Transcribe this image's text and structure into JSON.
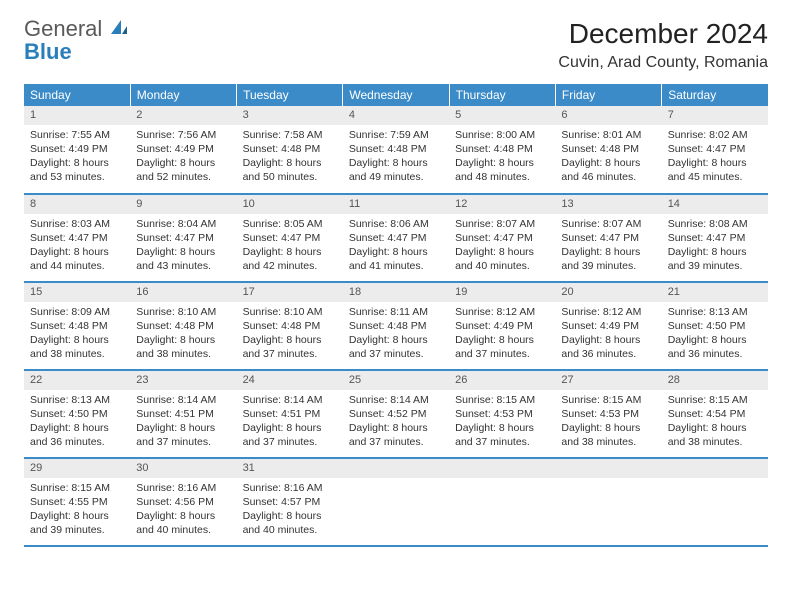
{
  "logo": {
    "general": "General",
    "blue": "Blue"
  },
  "title": "December 2024",
  "location": "Cuvin, Arad County, Romania",
  "header_bg": "#3b8bc9",
  "days": [
    "Sunday",
    "Monday",
    "Tuesday",
    "Wednesday",
    "Thursday",
    "Friday",
    "Saturday"
  ],
  "weeks": [
    [
      {
        "n": "1",
        "sr": "7:55 AM",
        "ss": "4:49 PM",
        "dl": "8 hours and 53 minutes."
      },
      {
        "n": "2",
        "sr": "7:56 AM",
        "ss": "4:49 PM",
        "dl": "8 hours and 52 minutes."
      },
      {
        "n": "3",
        "sr": "7:58 AM",
        "ss": "4:48 PM",
        "dl": "8 hours and 50 minutes."
      },
      {
        "n": "4",
        "sr": "7:59 AM",
        "ss": "4:48 PM",
        "dl": "8 hours and 49 minutes."
      },
      {
        "n": "5",
        "sr": "8:00 AM",
        "ss": "4:48 PM",
        "dl": "8 hours and 48 minutes."
      },
      {
        "n": "6",
        "sr": "8:01 AM",
        "ss": "4:48 PM",
        "dl": "8 hours and 46 minutes."
      },
      {
        "n": "7",
        "sr": "8:02 AM",
        "ss": "4:47 PM",
        "dl": "8 hours and 45 minutes."
      }
    ],
    [
      {
        "n": "8",
        "sr": "8:03 AM",
        "ss": "4:47 PM",
        "dl": "8 hours and 44 minutes."
      },
      {
        "n": "9",
        "sr": "8:04 AM",
        "ss": "4:47 PM",
        "dl": "8 hours and 43 minutes."
      },
      {
        "n": "10",
        "sr": "8:05 AM",
        "ss": "4:47 PM",
        "dl": "8 hours and 42 minutes."
      },
      {
        "n": "11",
        "sr": "8:06 AM",
        "ss": "4:47 PM",
        "dl": "8 hours and 41 minutes."
      },
      {
        "n": "12",
        "sr": "8:07 AM",
        "ss": "4:47 PM",
        "dl": "8 hours and 40 minutes."
      },
      {
        "n": "13",
        "sr": "8:07 AM",
        "ss": "4:47 PM",
        "dl": "8 hours and 39 minutes."
      },
      {
        "n": "14",
        "sr": "8:08 AM",
        "ss": "4:47 PM",
        "dl": "8 hours and 39 minutes."
      }
    ],
    [
      {
        "n": "15",
        "sr": "8:09 AM",
        "ss": "4:48 PM",
        "dl": "8 hours and 38 minutes."
      },
      {
        "n": "16",
        "sr": "8:10 AM",
        "ss": "4:48 PM",
        "dl": "8 hours and 38 minutes."
      },
      {
        "n": "17",
        "sr": "8:10 AM",
        "ss": "4:48 PM",
        "dl": "8 hours and 37 minutes."
      },
      {
        "n": "18",
        "sr": "8:11 AM",
        "ss": "4:48 PM",
        "dl": "8 hours and 37 minutes."
      },
      {
        "n": "19",
        "sr": "8:12 AM",
        "ss": "4:49 PM",
        "dl": "8 hours and 37 minutes."
      },
      {
        "n": "20",
        "sr": "8:12 AM",
        "ss": "4:49 PM",
        "dl": "8 hours and 36 minutes."
      },
      {
        "n": "21",
        "sr": "8:13 AM",
        "ss": "4:50 PM",
        "dl": "8 hours and 36 minutes."
      }
    ],
    [
      {
        "n": "22",
        "sr": "8:13 AM",
        "ss": "4:50 PM",
        "dl": "8 hours and 36 minutes."
      },
      {
        "n": "23",
        "sr": "8:14 AM",
        "ss": "4:51 PM",
        "dl": "8 hours and 37 minutes."
      },
      {
        "n": "24",
        "sr": "8:14 AM",
        "ss": "4:51 PM",
        "dl": "8 hours and 37 minutes."
      },
      {
        "n": "25",
        "sr": "8:14 AM",
        "ss": "4:52 PM",
        "dl": "8 hours and 37 minutes."
      },
      {
        "n": "26",
        "sr": "8:15 AM",
        "ss": "4:53 PM",
        "dl": "8 hours and 37 minutes."
      },
      {
        "n": "27",
        "sr": "8:15 AM",
        "ss": "4:53 PM",
        "dl": "8 hours and 38 minutes."
      },
      {
        "n": "28",
        "sr": "8:15 AM",
        "ss": "4:54 PM",
        "dl": "8 hours and 38 minutes."
      }
    ],
    [
      {
        "n": "29",
        "sr": "8:15 AM",
        "ss": "4:55 PM",
        "dl": "8 hours and 39 minutes."
      },
      {
        "n": "30",
        "sr": "8:16 AM",
        "ss": "4:56 PM",
        "dl": "8 hours and 40 minutes."
      },
      {
        "n": "31",
        "sr": "8:16 AM",
        "ss": "4:57 PM",
        "dl": "8 hours and 40 minutes."
      },
      null,
      null,
      null,
      null
    ]
  ],
  "labels": {
    "sunrise": "Sunrise: ",
    "sunset": "Sunset: ",
    "daylight": "Daylight: "
  }
}
